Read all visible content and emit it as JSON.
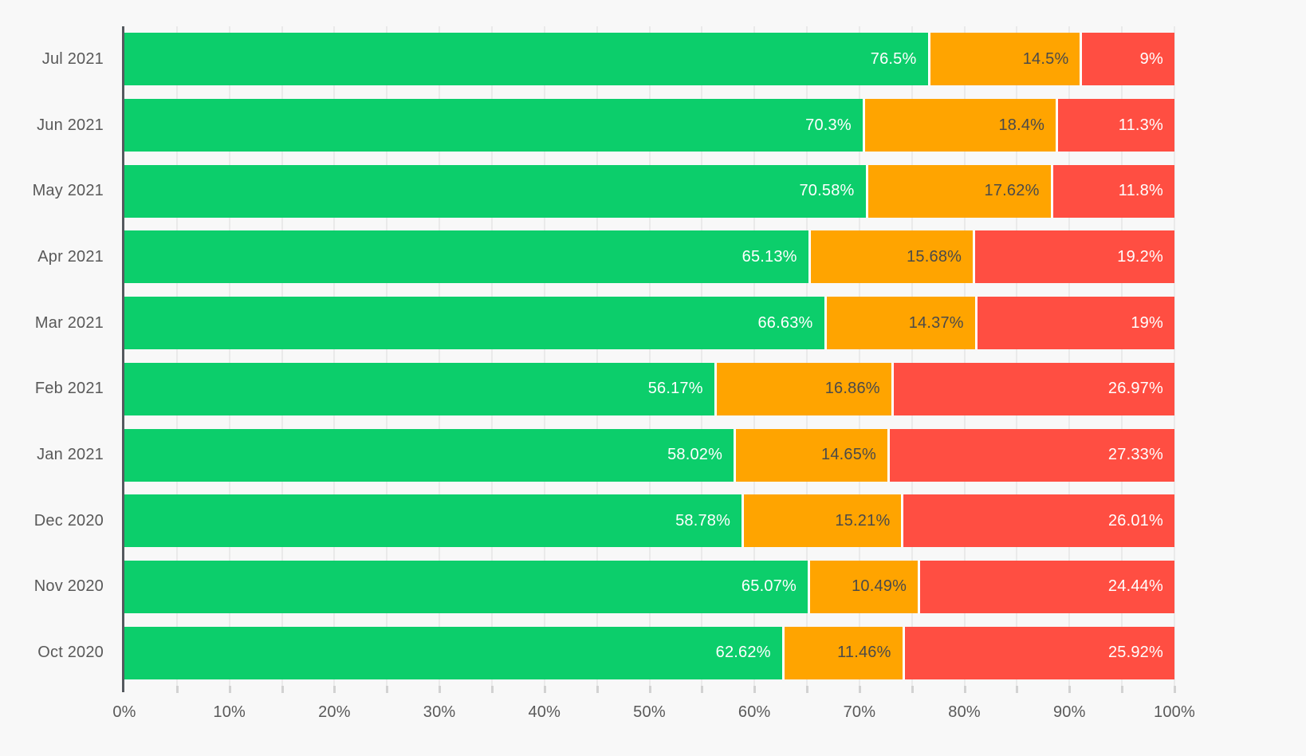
{
  "background_color": "#f8f8f8",
  "chart_data": {
    "type": "bar",
    "orientation": "horizontal",
    "stacked": true,
    "title": "",
    "xlabel": "",
    "ylabel": "",
    "legend": "none",
    "grid": true,
    "categories": [
      "Jul 2021",
      "Jun 2021",
      "May 2021",
      "Apr 2021",
      "Mar 2021",
      "Feb 2021",
      "Jan 2021",
      "Dec 2020",
      "Nov 2020",
      "Oct 2020"
    ],
    "series": [
      {
        "name": "green-segment",
        "color": "#0cce6b",
        "label_color": "#ffffff",
        "values": [
          76.5,
          70.3,
          70.58,
          65.13,
          66.63,
          56.17,
          58.02,
          58.78,
          65.07,
          62.62
        ],
        "labels": [
          "76.5%",
          "70.3%",
          "70.58%",
          "65.13%",
          "66.63%",
          "56.17%",
          "58.02%",
          "58.78%",
          "65.07%",
          "62.62%"
        ]
      },
      {
        "name": "orange-segment",
        "color": "#ffa400",
        "label_color": "#4a4a4a",
        "values": [
          14.5,
          18.4,
          17.62,
          15.68,
          14.37,
          16.86,
          14.65,
          15.21,
          10.49,
          11.46
        ],
        "labels": [
          "14.5%",
          "18.4%",
          "17.62%",
          "15.68%",
          "14.37%",
          "16.86%",
          "14.65%",
          "15.21%",
          "10.49%",
          "11.46%"
        ]
      },
      {
        "name": "red-segment",
        "color": "#ff4e42",
        "label_color": "#ffffff",
        "values": [
          9,
          11.3,
          11.8,
          19.2,
          19,
          26.97,
          27.33,
          26.01,
          24.44,
          25.92
        ],
        "labels": [
          "9%",
          "11.3%",
          "11.8%",
          "19.2%",
          "19%",
          "26.97%",
          "27.33%",
          "26.01%",
          "24.44%",
          "25.92%"
        ]
      }
    ],
    "x_axis": {
      "min": 0,
      "max": 100,
      "major_tick_step": 10,
      "minor_tick_step": 5,
      "ticks": [
        "0%",
        "10%",
        "20%",
        "30%",
        "40%",
        "50%",
        "60%",
        "70%",
        "80%",
        "90%",
        "100%"
      ]
    }
  }
}
